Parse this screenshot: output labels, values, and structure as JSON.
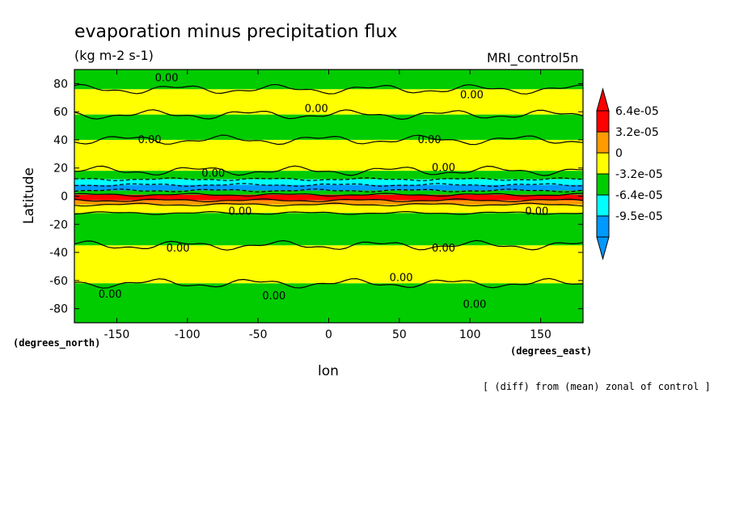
{
  "chart_data": {
    "type": "heatmap",
    "title": "evaporation minus precipitation flux",
    "subtitle": "(kg m-2 s-1)",
    "dataset": "MRI_control5n",
    "xlabel": "lon",
    "ylabel": "Latitude",
    "x_units": "(degrees_east)",
    "y_units": "(degrees_north)",
    "xlim": [
      -180,
      180
    ],
    "ylim": [
      -90,
      90
    ],
    "x_ticks": [
      "-150",
      "-100",
      "-50",
      "0",
      "50",
      "100",
      "150"
    ],
    "y_ticks": [
      "80",
      "60",
      "40",
      "20",
      "0",
      "-20",
      "-40",
      "-60",
      "-80"
    ],
    "note": "[ (diff) from (mean) zonal of control ]",
    "colorbar": {
      "labels": [
        "6.4e-05",
        "3.2e-05",
        "0",
        "-3.2e-05",
        "-6.4e-05",
        "-9.5e-05"
      ],
      "colors": [
        "#ff0000",
        "#ff9900",
        "#ffff00",
        "#00cc00",
        "#00ffff",
        "#0099ff"
      ]
    },
    "bands": [
      {
        "lat_from": 90,
        "lat_to": 76,
        "color": "#00cc00"
      },
      {
        "lat_from": 76,
        "lat_to": 58,
        "color": "#ffff00"
      },
      {
        "lat_from": 58,
        "lat_to": 40,
        "color": "#00cc00"
      },
      {
        "lat_from": 40,
        "lat_to": 18,
        "color": "#ffff00"
      },
      {
        "lat_from": 18,
        "lat_to": 12,
        "color": "#00cc00"
      },
      {
        "lat_from": 12,
        "lat_to": 8,
        "color": "#00ffff"
      },
      {
        "lat_from": 8,
        "lat_to": 4,
        "color": "#0099ff"
      },
      {
        "lat_from": 4,
        "lat_to": 1,
        "color": "#00cc00"
      },
      {
        "lat_from": 1,
        "lat_to": -3,
        "color": "#ff0000"
      },
      {
        "lat_from": -3,
        "lat_to": -6,
        "color": "#ff9900"
      },
      {
        "lat_from": -6,
        "lat_to": -12,
        "color": "#ffff00"
      },
      {
        "lat_from": -12,
        "lat_to": -35,
        "color": "#00cc00"
      },
      {
        "lat_from": -35,
        "lat_to": -62,
        "color": "#ffff00"
      },
      {
        "lat_from": -62,
        "lat_to": -90,
        "color": "#00cc00"
      }
    ],
    "contour_labels": [
      {
        "lon": -123,
        "lat": 84,
        "text": "0.00"
      },
      {
        "lon": 93,
        "lat": 72,
        "text": "0.00"
      },
      {
        "lon": -17,
        "lat": 62,
        "text": "0.00"
      },
      {
        "lon": -135,
        "lat": 40,
        "text": "0.00"
      },
      {
        "lon": 63,
        "lat": 40,
        "text": "0.00"
      },
      {
        "lon": -90,
        "lat": 16,
        "text": "0.00"
      },
      {
        "lon": 73,
        "lat": 20,
        "text": "0.00"
      },
      {
        "lon": -71,
        "lat": -11,
        "text": "0.00"
      },
      {
        "lon": 139,
        "lat": -11,
        "text": "0.00"
      },
      {
        "lon": -115,
        "lat": -37,
        "text": "0.00"
      },
      {
        "lon": 73,
        "lat": -37,
        "text": "0.00"
      },
      {
        "lon": 43,
        "lat": -58,
        "text": "0.00"
      },
      {
        "lon": -163,
        "lat": -70,
        "text": "0.00"
      },
      {
        "lon": -47,
        "lat": -71,
        "text": "0.00"
      },
      {
        "lon": 95,
        "lat": -77,
        "text": "0.00"
      }
    ]
  },
  "icons": {
    "colorbar_up": "triangle-up-icon",
    "colorbar_down": "triangle-down-icon"
  }
}
